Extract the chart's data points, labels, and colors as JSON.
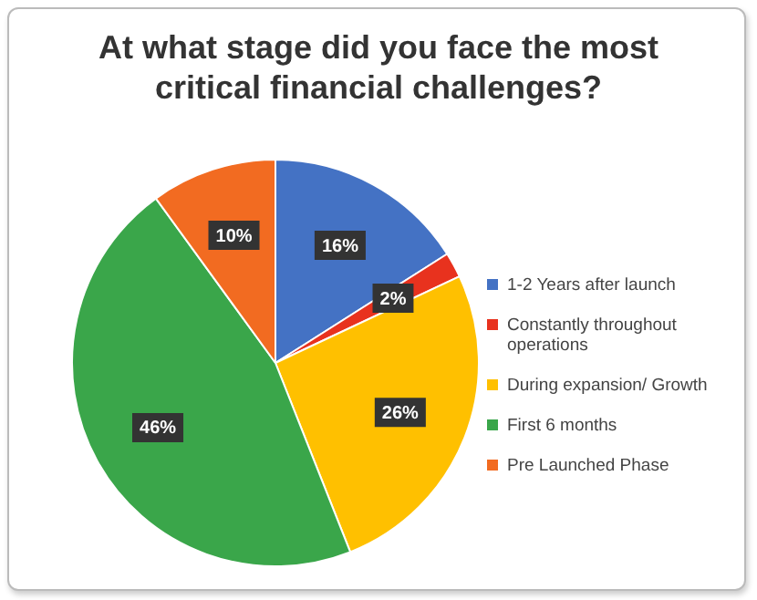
{
  "chart_data": {
    "type": "pie",
    "title": "At what stage did you face the most critical financial challenges?",
    "categories": [
      "1-2 Years after launch",
      "Constantly throughout operations",
      "During expansion/ Growth",
      "First 6 months",
      "Pre Launched Phase"
    ],
    "values": [
      16,
      2,
      26,
      46,
      10
    ],
    "colors": [
      "#4472c4",
      "#e8321e",
      "#ffc000",
      "#3aa64a",
      "#f26b21"
    ],
    "value_labels": [
      "16%",
      "2%",
      "26%",
      "46%",
      "10%"
    ],
    "legend": "right"
  }
}
